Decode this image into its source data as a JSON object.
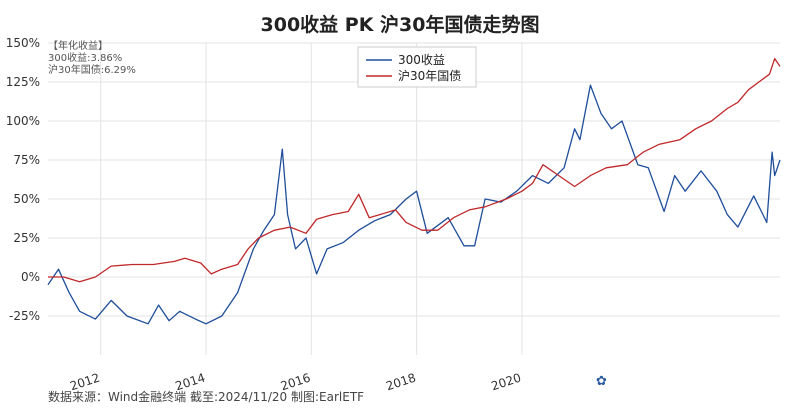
{
  "chart_data": {
    "type": "line",
    "title": "300收益 PK 沪30年国债走势图",
    "xlabel": "",
    "ylabel": "",
    "ylim": [
      -50,
      150
    ],
    "yticks": [
      -25,
      0,
      25,
      50,
      75,
      100,
      125,
      150
    ],
    "ytick_labels": [
      "-25%",
      "0%",
      "25%",
      "50%",
      "75%",
      "100%",
      "125%",
      "150%"
    ],
    "xlim": [
      2011.0,
      2024.9
    ],
    "xticks": [
      2012,
      2014,
      2016,
      2018,
      2020
    ],
    "xtick_labels": [
      "2012",
      "2014",
      "2016",
      "2018",
      "2020"
    ],
    "grid": true,
    "legend_position": "top-center",
    "series": [
      {
        "name": "300收益",
        "color": "#1f4e9a",
        "x": [
          2011.0,
          2011.2,
          2011.4,
          2011.6,
          2011.9,
          2012.2,
          2012.5,
          2012.9,
          2013.1,
          2013.3,
          2013.5,
          2013.8,
          2014.0,
          2014.3,
          2014.6,
          2014.9,
          2015.1,
          2015.3,
          2015.45,
          2015.55,
          2015.7,
          2015.9,
          2016.1,
          2016.3,
          2016.6,
          2016.9,
          2017.2,
          2017.5,
          2017.8,
          2018.0,
          2018.2,
          2018.6,
          2018.9,
          2019.1,
          2019.3,
          2019.6,
          2019.9,
          2020.2,
          2020.5,
          2020.8,
          2021.0,
          2021.1,
          2021.3,
          2021.5,
          2021.7,
          2021.9,
          2022.2,
          2022.4,
          2022.7,
          2022.9,
          2023.1,
          2023.4,
          2023.7,
          2023.9,
          2024.1,
          2024.4,
          2024.65,
          2024.75,
          2024.8,
          2024.9
        ],
        "values": [
          -5,
          5,
          -10,
          -22,
          -27,
          -15,
          -25,
          -30,
          -18,
          -28,
          -22,
          -27,
          -30,
          -25,
          -10,
          18,
          30,
          40,
          82,
          40,
          18,
          25,
          2,
          18,
          22,
          30,
          36,
          40,
          50,
          55,
          28,
          38,
          20,
          20,
          50,
          48,
          55,
          65,
          60,
          70,
          95,
          88,
          123,
          105,
          95,
          100,
          72,
          70,
          42,
          65,
          55,
          68,
          55,
          40,
          32,
          52,
          35,
          80,
          65,
          75
        ]
      },
      {
        "name": "沪30年国债",
        "color": "#c0282a",
        "x": [
          2011.0,
          2011.3,
          2011.6,
          2011.9,
          2012.2,
          2012.6,
          2013.0,
          2013.4,
          2013.6,
          2013.9,
          2014.1,
          2014.3,
          2014.6,
          2014.8,
          2015.0,
          2015.3,
          2015.6,
          2015.9,
          2016.1,
          2016.4,
          2016.7,
          2016.9,
          2017.1,
          2017.3,
          2017.6,
          2017.8,
          2018.1,
          2018.4,
          2018.7,
          2019.0,
          2019.3,
          2019.7,
          2020.0,
          2020.2,
          2020.4,
          2020.7,
          2021.0,
          2021.3,
          2021.6,
          2022.0,
          2022.3,
          2022.6,
          2023.0,
          2023.3,
          2023.6,
          2023.9,
          2024.1,
          2024.3,
          2024.5,
          2024.7,
          2024.8,
          2024.9
        ],
        "values": [
          0,
          0,
          -3,
          0,
          7,
          8,
          8,
          10,
          12,
          9,
          2,
          5,
          8,
          18,
          25,
          30,
          32,
          28,
          37,
          40,
          42,
          53,
          38,
          40,
          43,
          35,
          30,
          30,
          38,
          43,
          45,
          50,
          55,
          60,
          72,
          65,
          58,
          65,
          70,
          72,
          80,
          85,
          88,
          95,
          100,
          108,
          112,
          120,
          125,
          130,
          140,
          135
        ]
      }
    ]
  },
  "annotation": {
    "header": "【年化收益】",
    "line1": "300收益:3.86%",
    "line2": "沪30年国债:6.29%"
  },
  "footer": {
    "source": "数据来源：Wind金融终端 截至:2024/11/20 制图:EarlETF"
  },
  "watermark": {
    "glyph": "✿"
  }
}
